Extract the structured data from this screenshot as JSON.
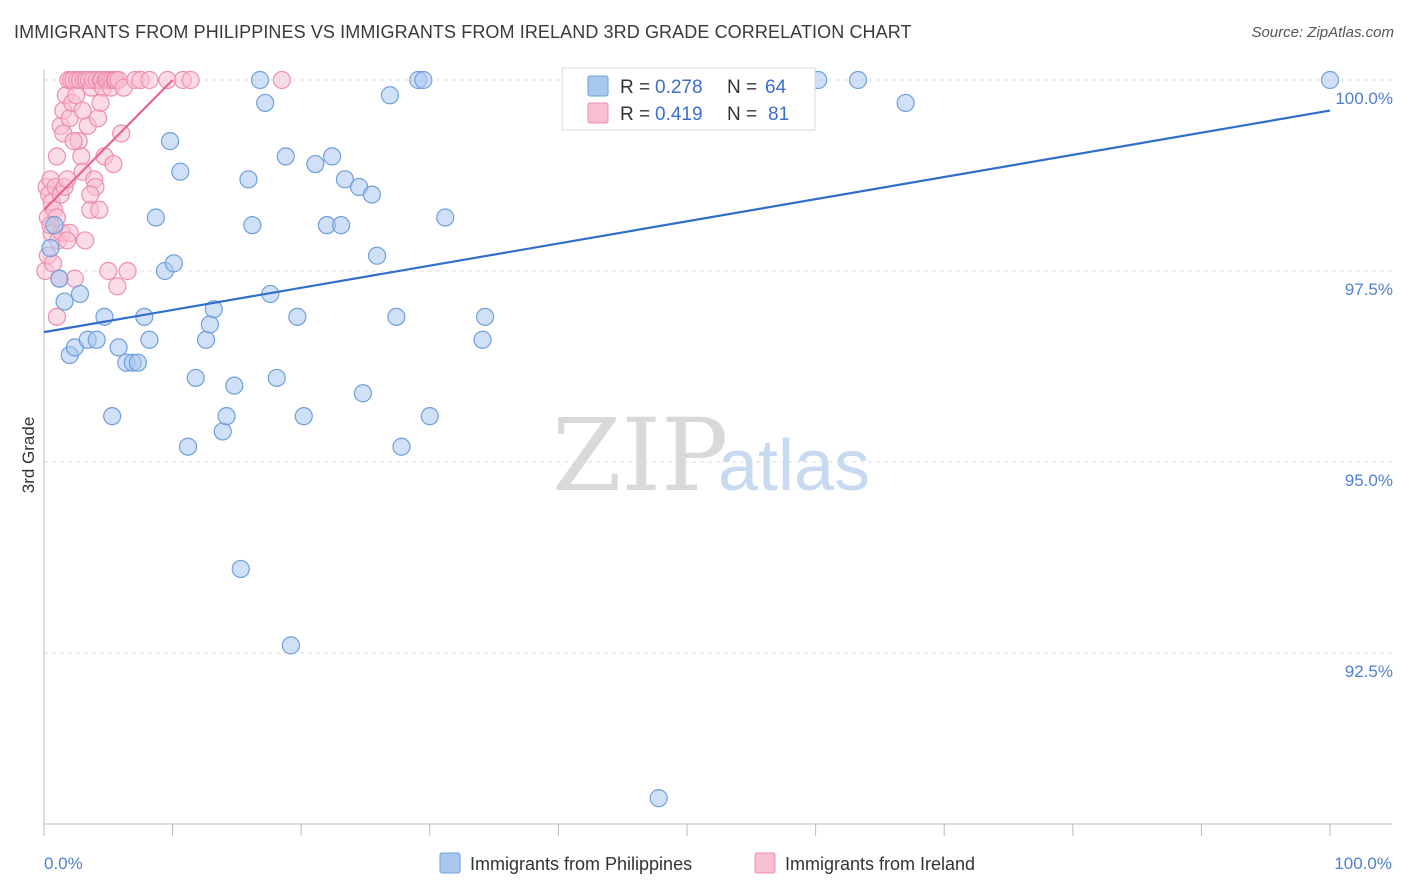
{
  "title": "IMMIGRANTS FROM PHILIPPINES VS IMMIGRANTS FROM IRELAND 3RD GRADE CORRELATION CHART",
  "source": "Source: ZipAtlas.com",
  "watermark": {
    "zip": "ZIP",
    "atlas": "atlas"
  },
  "colors": {
    "blue_fill": "#a9c8f0",
    "blue_stroke": "#6f9fdc",
    "blue_line": "#2f6fcb",
    "pink_fill": "#f7bfd1",
    "pink_stroke": "#ee8fac",
    "pink_line": "#e8648f",
    "grid": "#dddddd",
    "axis": "#bbbbbb"
  },
  "legend": {
    "r_label": "R =",
    "n_label": "N =",
    "items": [
      {
        "name": "Immigrants from Philippines",
        "r": "0.278",
        "n": "64"
      },
      {
        "name": "Immigrants from Ireland",
        "r": "0.419",
        "n": "81"
      }
    ]
  },
  "chart_data": {
    "type": "scatter",
    "title": "IMMIGRANTS FROM PHILIPPINES VS IMMIGRANTS FROM IRELAND 3RD GRADE CORRELATION CHART",
    "xlabel": "",
    "ylabel": "3rd Grade",
    "xlim": [
      0,
      100
    ],
    "ylim": [
      90.2,
      100.15
    ],
    "x_tick_labels": [
      "0.0%",
      "100.0%"
    ],
    "y_ticks": [
      {
        "value": 100.0,
        "label": "100.0%"
      },
      {
        "value": 97.5,
        "label": "97.5%"
      },
      {
        "value": 95.0,
        "label": "95.0%"
      },
      {
        "value": 92.5,
        "label": "92.5%"
      }
    ],
    "series": [
      {
        "name": "Immigrants from Philippines",
        "trendline": {
          "x": [
            0,
            100
          ],
          "y": [
            96.7,
            99.6
          ]
        },
        "points": [
          [
            0.5,
            97.8
          ],
          [
            0.8,
            98.1
          ],
          [
            1.2,
            97.4
          ],
          [
            1.6,
            97.1
          ],
          [
            2.0,
            96.4
          ],
          [
            2.4,
            96.5
          ],
          [
            2.8,
            97.2
          ],
          [
            3.4,
            96.6
          ],
          [
            4.1,
            96.6
          ],
          [
            4.7,
            96.9
          ],
          [
            5.3,
            95.6
          ],
          [
            5.8,
            96.5
          ],
          [
            6.4,
            96.3
          ],
          [
            6.9,
            96.3
          ],
          [
            7.3,
            96.3
          ],
          [
            7.8,
            96.9
          ],
          [
            8.2,
            96.6
          ],
          [
            8.7,
            98.2
          ],
          [
            9.4,
            97.5
          ],
          [
            9.8,
            99.2
          ],
          [
            10.1,
            97.6
          ],
          [
            10.6,
            98.8
          ],
          [
            11.2,
            95.2
          ],
          [
            11.8,
            96.1
          ],
          [
            12.6,
            96.6
          ],
          [
            12.9,
            96.8
          ],
          [
            13.2,
            97.0
          ],
          [
            13.9,
            95.4
          ],
          [
            14.2,
            95.6
          ],
          [
            14.8,
            96.0
          ],
          [
            15.3,
            93.6
          ],
          [
            15.9,
            98.7
          ],
          [
            16.2,
            98.1
          ],
          [
            16.8,
            100.0
          ],
          [
            17.2,
            99.7
          ],
          [
            17.6,
            97.2
          ],
          [
            18.1,
            96.1
          ],
          [
            18.8,
            99.0
          ],
          [
            19.2,
            92.6
          ],
          [
            19.7,
            96.9
          ],
          [
            20.2,
            95.6
          ],
          [
            21.1,
            98.9
          ],
          [
            22.0,
            98.1
          ],
          [
            22.4,
            99.0
          ],
          [
            23.1,
            98.1
          ],
          [
            23.4,
            98.7
          ],
          [
            24.5,
            98.6
          ],
          [
            24.8,
            95.9
          ],
          [
            25.5,
            98.5
          ],
          [
            25.9,
            97.7
          ],
          [
            26.9,
            99.8
          ],
          [
            27.4,
            96.9
          ],
          [
            27.8,
            95.2
          ],
          [
            29.1,
            100.0
          ],
          [
            29.5,
            100.0
          ],
          [
            30.0,
            95.6
          ],
          [
            31.2,
            98.2
          ],
          [
            34.1,
            96.6
          ],
          [
            34.3,
            96.9
          ],
          [
            47.8,
            90.6
          ],
          [
            60.2,
            100.0
          ],
          [
            63.3,
            100.0
          ],
          [
            67.0,
            99.7
          ],
          [
            100.0,
            100.0
          ]
        ]
      },
      {
        "name": "Immigrants from Ireland",
        "trendline": {
          "x": [
            0,
            10
          ],
          "y": [
            98.3,
            100.0
          ]
        },
        "points": [
          [
            0.1,
            97.5
          ],
          [
            0.2,
            98.6
          ],
          [
            0.3,
            98.2
          ],
          [
            0.3,
            97.7
          ],
          [
            0.4,
            98.5
          ],
          [
            0.5,
            98.7
          ],
          [
            0.6,
            98.0
          ],
          [
            0.6,
            98.4
          ],
          [
            0.7,
            97.6
          ],
          [
            0.8,
            98.3
          ],
          [
            0.9,
            98.6
          ],
          [
            1.0,
            99.0
          ],
          [
            1.0,
            96.9
          ],
          [
            1.1,
            97.9
          ],
          [
            1.2,
            97.4
          ],
          [
            1.3,
            98.5
          ],
          [
            1.3,
            99.4
          ],
          [
            1.4,
            98.0
          ],
          [
            1.5,
            99.3
          ],
          [
            1.5,
            99.6
          ],
          [
            1.6,
            98.6
          ],
          [
            1.7,
            99.8
          ],
          [
            1.8,
            98.7
          ],
          [
            1.9,
            100.0
          ],
          [
            2.0,
            98.0
          ],
          [
            2.0,
            99.5
          ],
          [
            2.1,
            100.0
          ],
          [
            2.2,
            99.7
          ],
          [
            2.3,
            100.0
          ],
          [
            2.4,
            97.4
          ],
          [
            2.5,
            99.8
          ],
          [
            2.6,
            100.0
          ],
          [
            2.7,
            99.2
          ],
          [
            2.8,
            100.0
          ],
          [
            2.9,
            99.0
          ],
          [
            3.0,
            98.8
          ],
          [
            3.1,
            100.0
          ],
          [
            3.2,
            97.9
          ],
          [
            3.3,
            100.0
          ],
          [
            3.4,
            99.4
          ],
          [
            3.5,
            100.0
          ],
          [
            3.6,
            98.3
          ],
          [
            3.7,
            99.9
          ],
          [
            3.8,
            100.0
          ],
          [
            3.9,
            98.7
          ],
          [
            4.0,
            98.6
          ],
          [
            4.1,
            100.0
          ],
          [
            4.2,
            99.5
          ],
          [
            4.3,
            98.3
          ],
          [
            4.4,
            100.0
          ],
          [
            4.5,
            100.0
          ],
          [
            4.6,
            99.9
          ],
          [
            4.7,
            99.0
          ],
          [
            4.8,
            100.0
          ],
          [
            4.9,
            100.0
          ],
          [
            5.0,
            97.5
          ],
          [
            5.1,
            100.0
          ],
          [
            5.2,
            99.9
          ],
          [
            5.3,
            100.0
          ],
          [
            5.4,
            98.9
          ],
          [
            5.5,
            100.0
          ],
          [
            5.6,
            100.0
          ],
          [
            5.7,
            97.3
          ],
          [
            5.8,
            100.0
          ],
          [
            6.0,
            99.3
          ],
          [
            6.2,
            99.9
          ],
          [
            6.5,
            97.5
          ],
          [
            7.1,
            100.0
          ],
          [
            7.5,
            100.0
          ],
          [
            8.2,
            100.0
          ],
          [
            9.6,
            100.0
          ],
          [
            10.8,
            100.0
          ],
          [
            11.4,
            100.0
          ],
          [
            18.5,
            100.0
          ],
          [
            1.0,
            98.2
          ],
          [
            2.3,
            99.2
          ],
          [
            3.0,
            99.6
          ],
          [
            3.6,
            98.5
          ],
          [
            4.4,
            99.7
          ],
          [
            0.5,
            98.1
          ],
          [
            1.8,
            97.9
          ]
        ]
      }
    ]
  }
}
